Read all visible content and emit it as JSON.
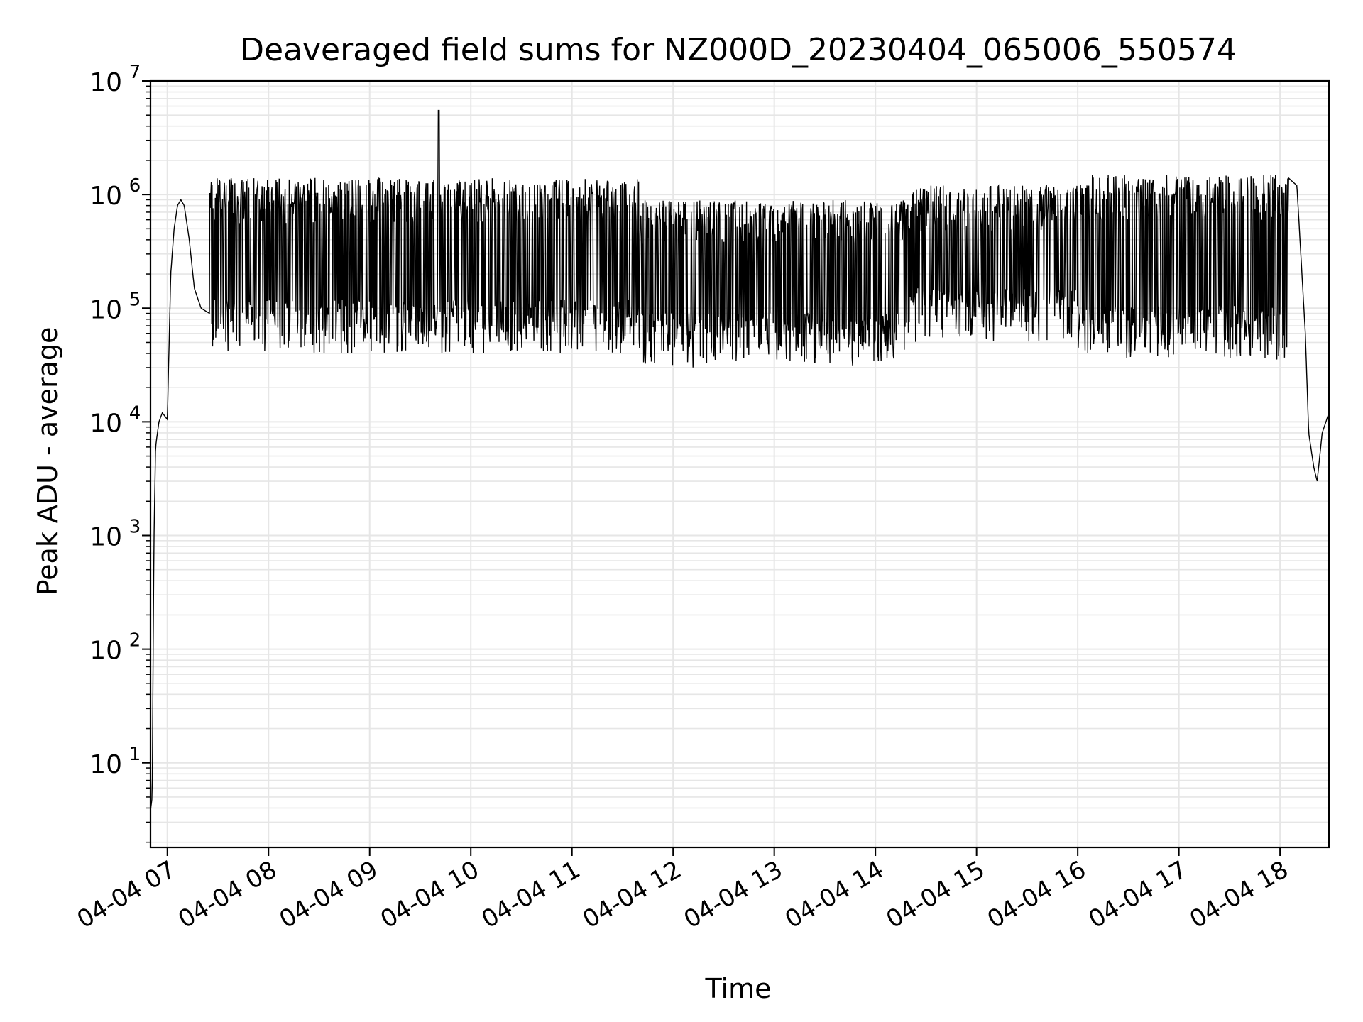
{
  "chart_data": {
    "type": "line",
    "title": "Deaveraged field sums for NZ000D_20230404_065006_550574",
    "xlabel": "Time",
    "ylabel": "Peak ADU - average",
    "yscale": "log",
    "ylim": [
      1.8,
      10000000
    ],
    "xlim": [
      "2023-04-04 06:50",
      "2023-04-04 18:29"
    ],
    "grid": true,
    "line_color": "#000000",
    "grid_color": "#e6e6e6",
    "x_ticks": [
      "04-04 07",
      "04-04 08",
      "04-04 09",
      "04-04 10",
      "04-04 11",
      "04-04 12",
      "04-04 13",
      "04-04 14",
      "04-04 15",
      "04-04 16",
      "04-04 17",
      "04-04 18"
    ],
    "y_ticks": [
      {
        "base": "10",
        "exp": "1"
      },
      {
        "base": "10",
        "exp": "2"
      },
      {
        "base": "10",
        "exp": "3"
      },
      {
        "base": "10",
        "exp": "4"
      },
      {
        "base": "10",
        "exp": "5"
      },
      {
        "base": "10",
        "exp": "6"
      },
      {
        "base": "10",
        "exp": "7"
      }
    ],
    "series": [
      {
        "x": [
          "2023-04-04 06:50",
          "2023-04-04 06:51",
          "2023-04-04 06:52",
          "2023-04-04 06:53",
          "2023-04-04 06:55",
          "2023-04-04 06:57",
          "2023-04-04 07:00",
          "2023-04-04 07:02",
          "2023-04-04 07:04",
          "2023-04-04 07:06",
          "2023-04-04 07:08",
          "2023-04-04 07:10",
          "2023-04-04 07:13",
          "2023-04-04 07:16",
          "2023-04-04 07:20",
          "2023-04-04 07:25",
          "2023-04-04 07:30",
          "2023-04-04 07:40",
          "2023-04-04 07:50",
          "2023-04-04 08:00",
          "2023-04-04 08:30",
          "2023-04-04 09:00",
          "2023-04-04 09:30",
          "2023-04-04 09:40",
          "2023-04-04 09:41",
          "2023-04-04 09:42",
          "2023-04-04 10:00",
          "2023-04-04 10:30",
          "2023-04-04 11:00",
          "2023-04-04 11:30",
          "2023-04-04 12:00",
          "2023-04-04 12:30",
          "2023-04-04 13:00",
          "2023-04-04 13:30",
          "2023-04-04 14:00",
          "2023-04-04 14:30",
          "2023-04-04 15:00",
          "2023-04-04 15:30",
          "2023-04-04 15:45",
          "2023-04-04 16:00",
          "2023-04-04 16:30",
          "2023-04-04 17:00",
          "2023-04-04 17:20",
          "2023-04-04 17:30",
          "2023-04-04 17:40",
          "2023-04-04 17:50",
          "2023-04-04 18:00",
          "2023-04-04 18:05",
          "2023-04-04 18:10",
          "2023-04-04 18:15",
          "2023-04-04 18:17",
          "2023-04-04 18:20",
          "2023-04-04 18:22",
          "2023-04-04 18:25",
          "2023-04-04 18:29"
        ],
        "y": [
          3.8,
          5,
          800,
          6000,
          10000,
          12000,
          10500,
          200000,
          500000,
          800000,
          900000,
          800000,
          400000,
          150000,
          100000,
          90000,
          100000,
          85000,
          1200000,
          80000,
          1300000,
          75000,
          1400000,
          70000,
          5500000,
          70000,
          1300000,
          65000,
          1200000,
          60000,
          1000000,
          55000,
          900000,
          50000,
          600000,
          500000,
          400000,
          150000,
          40000,
          120000,
          400000,
          70000,
          80000,
          30000,
          500000,
          1500000,
          1300000,
          1400000,
          1200000,
          60000,
          8000,
          4000,
          3000,
          8000,
          12000
        ]
      }
    ]
  }
}
